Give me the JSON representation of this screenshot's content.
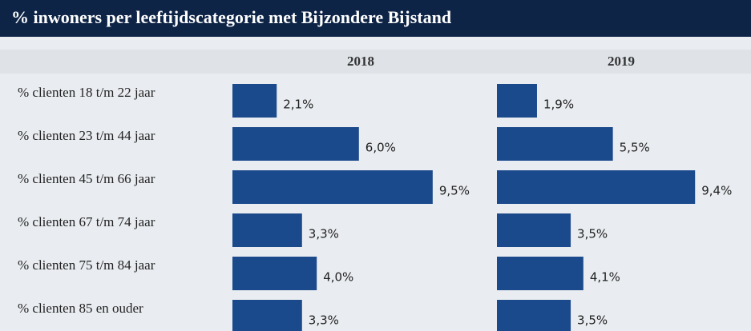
{
  "chart_data": {
    "type": "bar",
    "orientation": "horizontal",
    "title": "% inwoners per leeftijdscategorie met Bijzondere Bijstand",
    "categories": [
      "% clienten 18 t/m 22 jaar",
      "% clienten 23 t/m 44 jaar",
      "% clienten 45 t/m 66 jaar",
      "% clienten 67 t/m 74 jaar",
      "% clienten 75 t/m 84 jaar",
      "% clienten 85 en ouder"
    ],
    "series": [
      {
        "name": "2018",
        "color": "#1b4a8c",
        "values": [
          2.1,
          6.0,
          9.5,
          3.3,
          4.0,
          3.3
        ],
        "value_labels": [
          "2,1%",
          "6,0%",
          "9,5%",
          "3,3%",
          "4,0%",
          "3,3%"
        ]
      },
      {
        "name": "2019",
        "color": "#1b4a8c",
        "values": [
          1.9,
          5.5,
          9.4,
          3.5,
          4.1,
          3.5
        ],
        "value_labels": [
          "1,9%",
          "5,5%",
          "9,4%",
          "3,5%",
          "4,1%",
          "3,5%"
        ]
      }
    ]
  }
}
